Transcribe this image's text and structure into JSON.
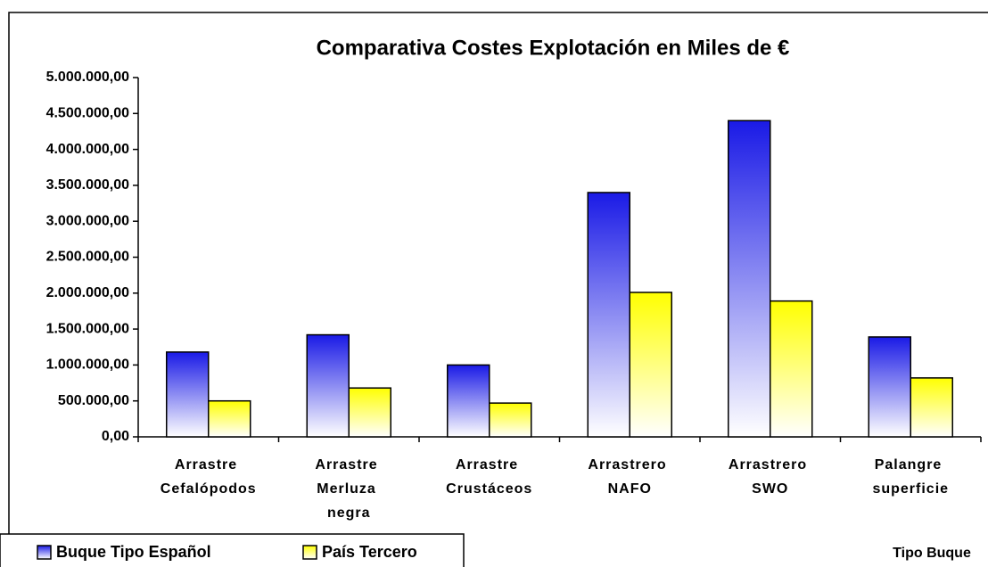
{
  "chart_data": {
    "type": "bar",
    "title": "Comparativa Costes Explotación en Miles de €",
    "x_label": "Tipo Buque",
    "categories": [
      "Arrastre Cefalópodos",
      "Arrastre Merluza negra",
      "Arrastre Crustáceos",
      "Arrastrero NAFO",
      "Arrastrero SWO",
      "Palangre superficie"
    ],
    "series": [
      {
        "name": "Buque Tipo Español",
        "color": "#1a1ae6",
        "values": [
          1180000,
          1420000,
          1000000,
          3400000,
          4400000,
          1390000
        ]
      },
      {
        "name": "País Tercero",
        "color": "#ffff00",
        "values": [
          500000,
          680000,
          470000,
          2010000,
          1890000,
          820000
        ]
      }
    ],
    "ylim": [
      0,
      5000000
    ],
    "yticks": [
      {
        "value": 0,
        "label": "0,00"
      },
      {
        "value": 500000,
        "label": "500.000,00"
      },
      {
        "value": 1000000,
        "label": "1.000.000,00"
      },
      {
        "value": 1500000,
        "label": "1.500.000,00"
      },
      {
        "value": 2000000,
        "label": "2.000.000,00"
      },
      {
        "value": 2500000,
        "label": "2.500.000,00"
      },
      {
        "value": 3000000,
        "label": "3.000.000,00"
      },
      {
        "value": 3500000,
        "label": "3.500.000,00"
      },
      {
        "value": 4000000,
        "label": "4.000.000,00"
      },
      {
        "value": 4500000,
        "label": "4.500.000,00"
      },
      {
        "value": 5000000,
        "label": "5.000.000,00"
      }
    ],
    "grid": false,
    "legend": "bottom-left"
  }
}
